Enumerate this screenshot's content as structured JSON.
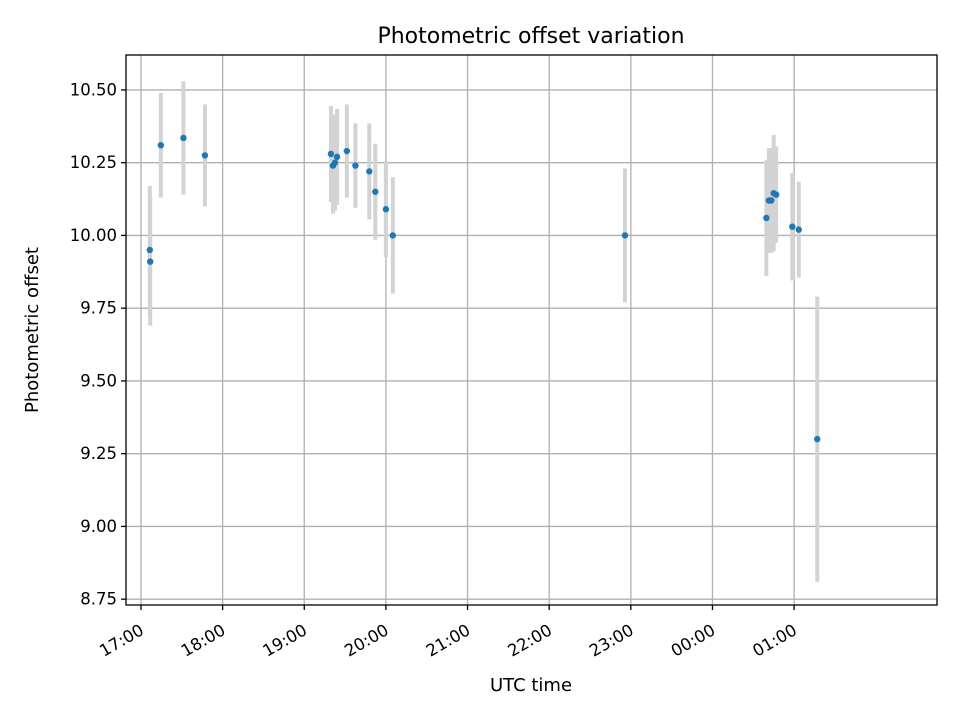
{
  "chart_data": {
    "type": "scatter",
    "title": "Photometric offset variation",
    "xlabel": "UTC time",
    "ylabel": "Photometric offset",
    "grid": true,
    "legend": "none",
    "colors": {
      "point": "#1f77b4",
      "errorbar": "#d3d3d3",
      "grid": "#b0b0b0"
    },
    "xlim": [
      "16:49",
      "02:45"
    ],
    "ylim": [
      8.73,
      10.62
    ],
    "xticks": [
      "17:00",
      "18:00",
      "19:00",
      "20:00",
      "21:00",
      "22:00",
      "23:00",
      "00:00",
      "01:00"
    ],
    "yticks": [
      "8.75",
      "9.00",
      "9.25",
      "9.50",
      "9.75",
      "10.00",
      "10.25",
      "10.50"
    ],
    "points": [
      {
        "x": "17:06.5",
        "y": 9.95,
        "err": 0.22
      },
      {
        "x": "17:06.8",
        "y": 9.91,
        "err": 0.22
      },
      {
        "x": "17:14.6",
        "y": 10.31,
        "err": 0.18
      },
      {
        "x": "17:31.2",
        "y": 10.335,
        "err": 0.195
      },
      {
        "x": "17:47.0",
        "y": 10.275,
        "err": 0.175
      },
      {
        "x": "19:19.6",
        "y": 10.28,
        "err": 0.165
      },
      {
        "x": "19:21.1",
        "y": 10.24,
        "err": 0.165
      },
      {
        "x": "19:22.6",
        "y": 10.25,
        "err": 0.165
      },
      {
        "x": "19:24.1",
        "y": 10.27,
        "err": 0.165
      },
      {
        "x": "19:31.3",
        "y": 10.29,
        "err": 0.16
      },
      {
        "x": "19:37.6",
        "y": 10.24,
        "err": 0.145
      },
      {
        "x": "19:47.8",
        "y": 10.22,
        "err": 0.165
      },
      {
        "x": "19:52.2",
        "y": 10.15,
        "err": 0.165
      },
      {
        "x": "20:00.0",
        "y": 10.09,
        "err": 0.165
      },
      {
        "x": "20:05.1",
        "y": 10.0,
        "err": 0.2
      },
      {
        "x": "22:55.7",
        "y": 10.0,
        "err": 0.23
      },
      {
        "x": "00:39.6",
        "y": 10.06,
        "err": 0.2
      },
      {
        "x": "00:41.4",
        "y": 10.12,
        "err": 0.18
      },
      {
        "x": "00:43.2",
        "y": 10.12,
        "err": 0.18
      },
      {
        "x": "00:45.0",
        "y": 10.145,
        "err": 0.2
      },
      {
        "x": "00:46.8",
        "y": 10.14,
        "err": 0.165
      },
      {
        "x": "00:58.7",
        "y": 10.03,
        "err": 0.185
      },
      {
        "x": "01:03.4",
        "y": 10.02,
        "err": 0.165
      },
      {
        "x": "01:17.0",
        "y": 9.3,
        "err": 0.49
      }
    ]
  }
}
